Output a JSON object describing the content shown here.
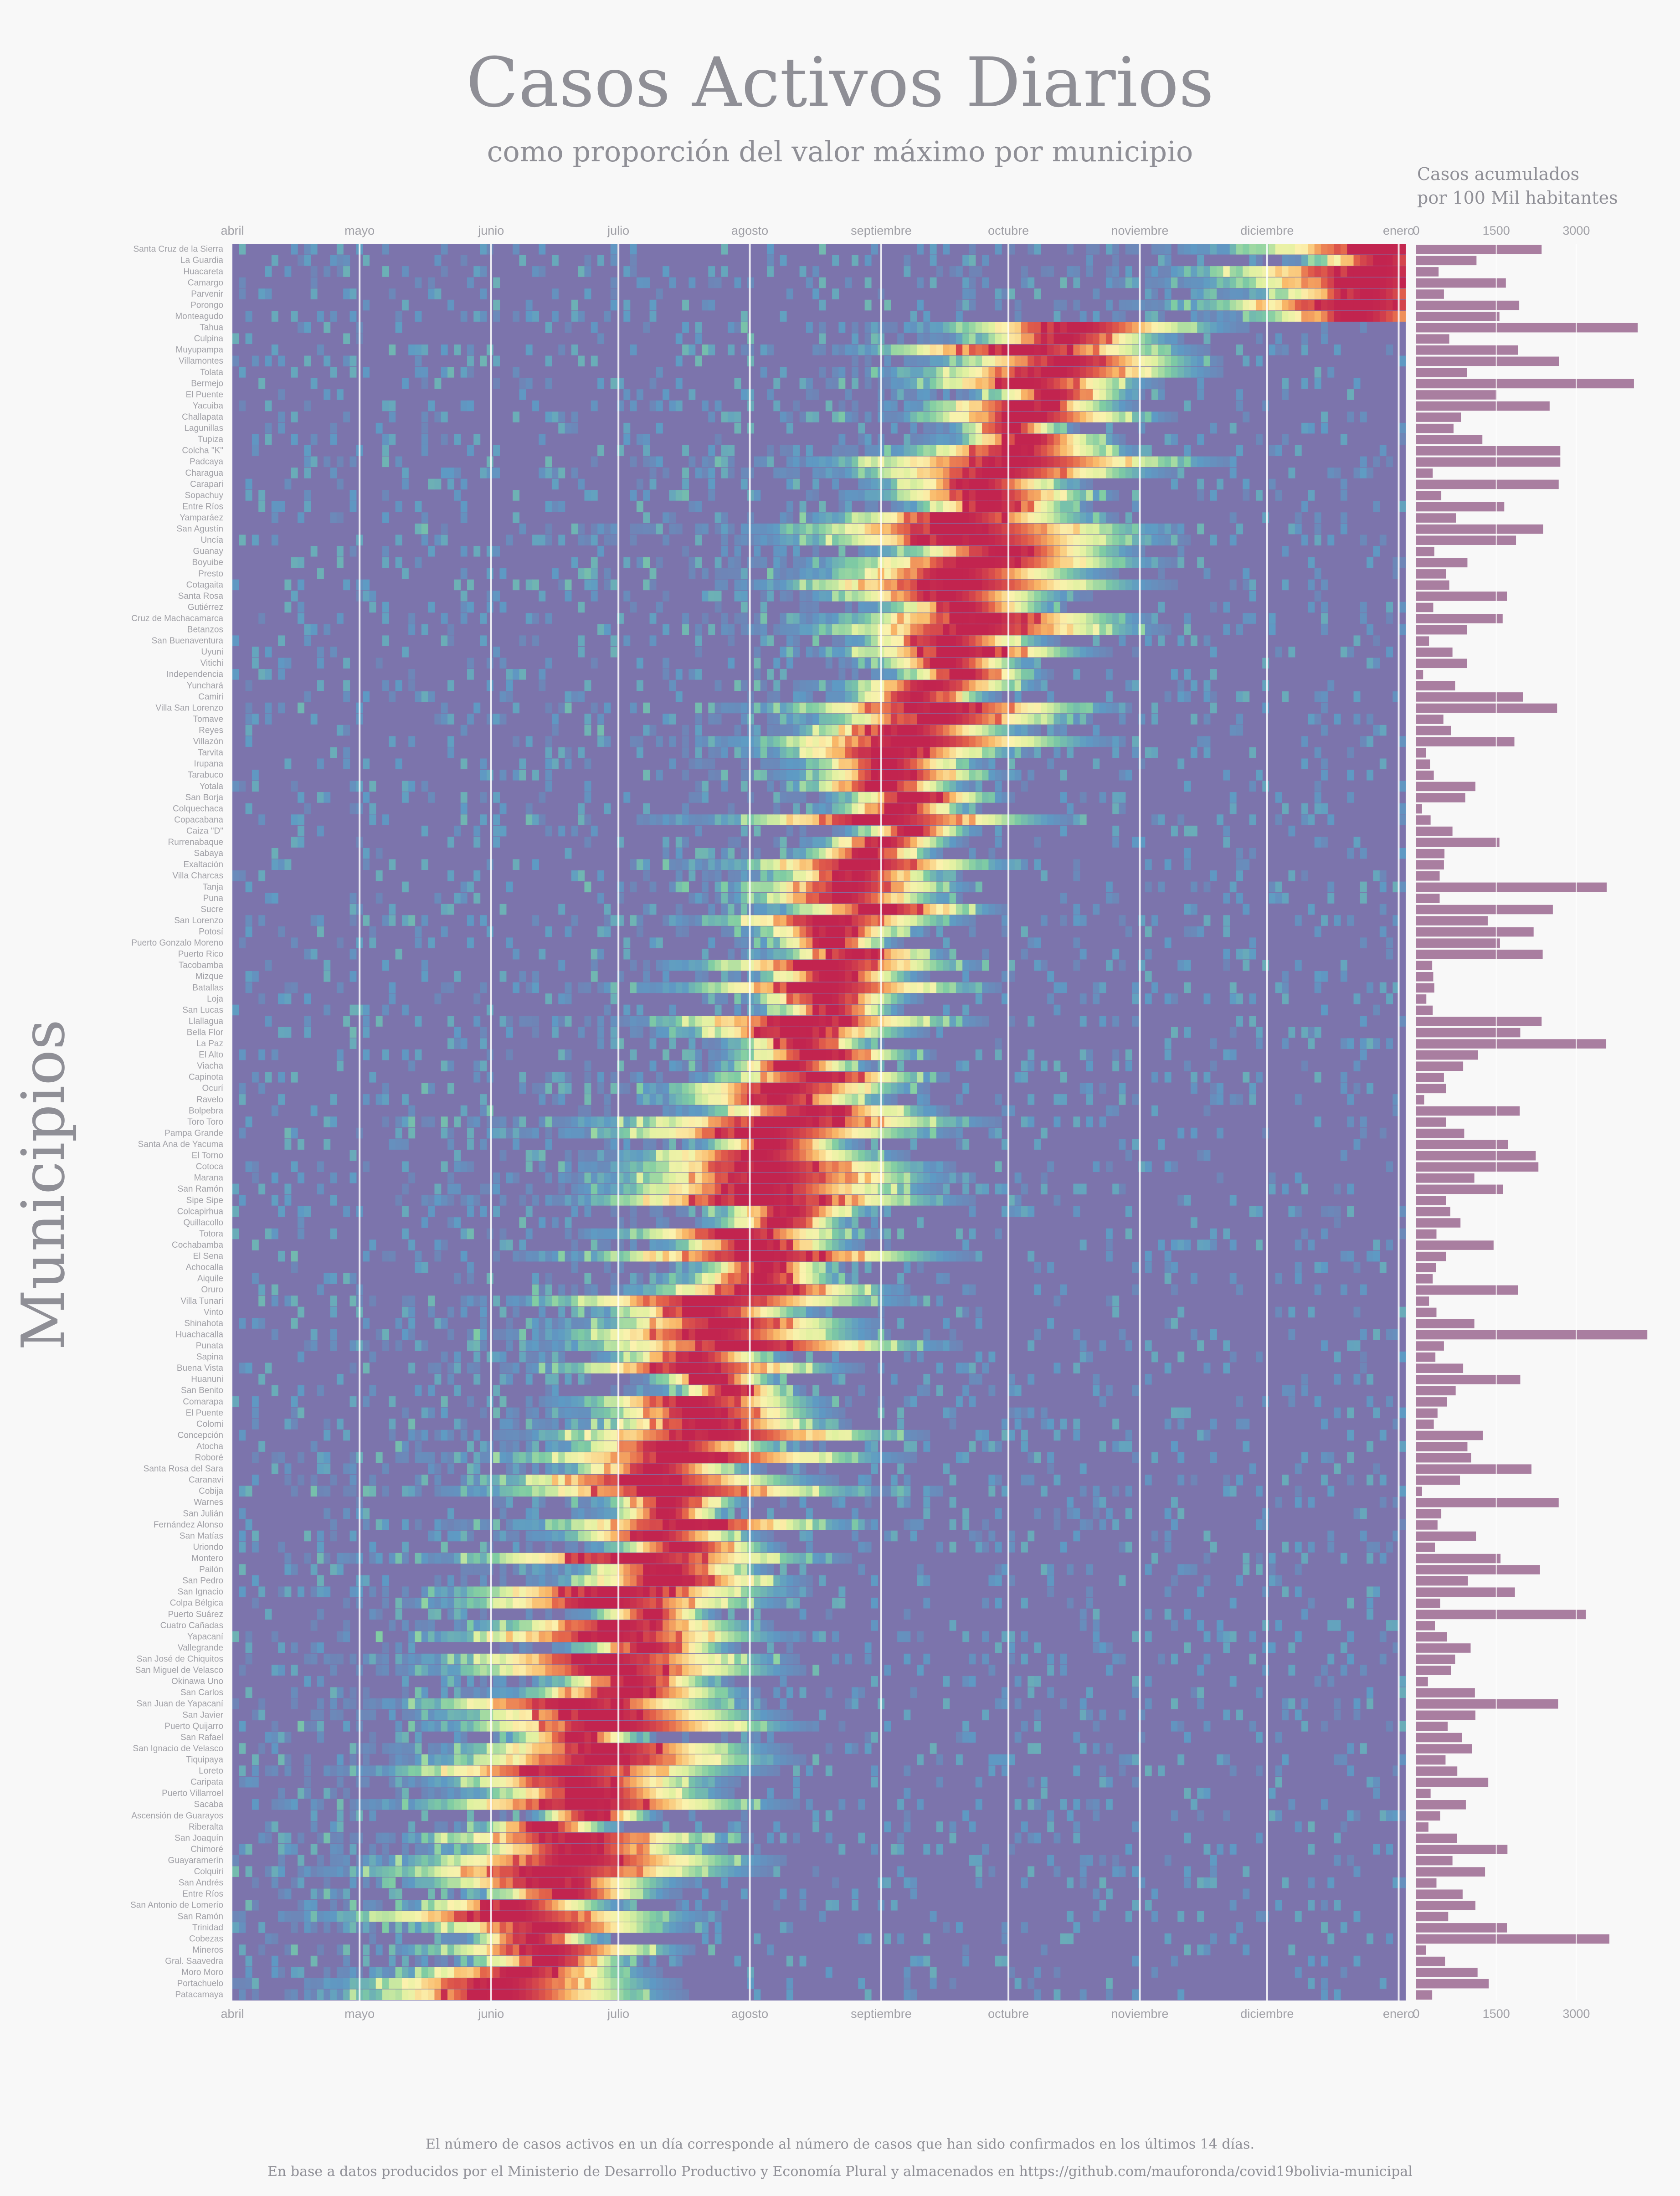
{
  "title": "Casos Activos Diarios",
  "subtitle": "como proporción del valor máximo por municipio",
  "y_axis_label": "Municipios",
  "bar_axis_title_line1": "Casos acumulados",
  "bar_axis_title_line2": "por 100 Mil habitantes",
  "footnote_line1": "El número de casos activos en un día corresponde al número de casos que han sido confirmados en los últimos 14 días.",
  "footnote_line2": "En base a datos producidos por el Ministerio de Desarrollo Productivo y Economía Plural y almacenados en https://github.com/mauforonda/covid19bolivia-municipal",
  "colors": {
    "background": "#f8f8f8",
    "heat_low": "#7c74ac",
    "heat_scale": [
      "#7c74ac",
      "#5e9ac4",
      "#7fcca3",
      "#dff1a0",
      "#fbf2ae",
      "#f9b868",
      "#e3624a",
      "#c2244f"
    ],
    "bar": "#a97ea0",
    "grid": "#ffffff",
    "text": "#8f8f96"
  },
  "chart_data": [
    {
      "type": "heatmap",
      "title": "Casos Activos Diarios",
      "subtitle": "como proporción del valor máximo por municipio",
      "ylabel": "Municipios",
      "value_range": [
        0,
        1
      ],
      "x_ticks": [
        "abril",
        "mayo",
        "junio",
        "julio",
        "agosto",
        "septiembre",
        "octubre",
        "noviembre",
        "diciembre",
        "enero"
      ],
      "x_range": [
        "2020-04-01",
        "2021-01-10"
      ],
      "municipios": [
        "Santa Cruz de la Sierra",
        "La Guardia",
        "Huacareta",
        "Camargo",
        "Parvenir",
        "Porongo",
        "Monteagudo",
        "Tahua",
        "Culpina",
        "Muyupampa",
        "Villamontes",
        "Tolata",
        "Bermejo",
        "El Puente",
        "Yacuiba",
        "Challapata",
        "Lagunillas",
        "Tupiza",
        "Colcha \"K\"",
        "Padcaya",
        "Charagua",
        "Carapari",
        "Sopachuy",
        "Entre Ríos",
        "Yamparáez",
        "San Agustín",
        "Uncía",
        "Guanay",
        "Boyuibe",
        "Presto",
        "Cotagaita",
        "Santa Rosa",
        "Gutiérrez",
        "Cruz de Machacamarca",
        "Betanzos",
        "San Buenaventura",
        "Uyuni",
        "Vitichi",
        "Independencia",
        "Yunchará",
        "Camiri",
        "Villa San Lorenzo",
        "Tomave",
        "Reyes",
        "Villazón",
        "Tarvita",
        "Irupana",
        "Tarabuco",
        "Yotala",
        "San Borja",
        "Colquechaca",
        "Copacabana",
        "Caiza \"D\"",
        "Rurrenabaque",
        "Sabaya",
        "Exaltación",
        "Villa Charcas",
        "Tanja",
        "Puna",
        "Sucre",
        "San Lorenzo",
        "Potosí",
        "Puerto Gonzalo Moreno",
        "Puerto Rico",
        "Tacobamba",
        "Mizque",
        "Batallas",
        "Loja",
        "San Lucas",
        "Llallagua",
        "Bella Flor",
        "La Paz",
        "El Alto",
        "Viacha",
        "Capinota",
        "Ocurí",
        "Ravelo",
        "Bolpebra",
        "Toro Toro",
        "Pampa Grande",
        "Santa Ana de Yacuma",
        "El Torno",
        "Cotoca",
        "Marana",
        "San Ramón",
        "Sipe Sipe",
        "Colcapirhua",
        "Quillacollo",
        "Totora",
        "Cochabamba",
        "El Sena",
        "Achocalla",
        "Aiquile",
        "Oruro",
        "Villa Tunari",
        "Vinto",
        "Shinahota",
        "Huachacalla",
        "Punata",
        "Sapina",
        "Buena Vista",
        "Huanuni",
        "San Benito",
        "Comarapa",
        "El Puente",
        "Colomi",
        "Concepción",
        "Atocha",
        "Roboré",
        "Santa Rosa del Sara",
        "Caranavi",
        "Cobija",
        "Warnes",
        "San Julián",
        "Fernández Alonso",
        "San Matías",
        "Uriondo",
        "Montero",
        "Pailón",
        "San Pedro",
        "San Ignacio",
        "Colpa Bélgica",
        "Puerto Suárez",
        "Cuatro Cañadas",
        "Yapacaní",
        "Vallegrande",
        "San José de Chiquitos",
        "San Miguel de Velasco",
        "Okinawa Uno",
        "San Carlos",
        "San Juan de Yapacaní",
        "San Javier",
        "Puerto Quijarro",
        "San Rafael",
        "San Ignacio de Velasco",
        "Tiquipaya",
        "Loreto",
        "Caripata",
        "Puerto Villarroel",
        "Sacaba",
        "Ascensión de Guarayos",
        "Riberalta",
        "San Joaquín",
        "Chimoré",
        "Guayaramerín",
        "Colquiri",
        "San Andrés",
        "Entre Ríos",
        "San Antonio de Lomerío",
        "San Ramón",
        "Trinidad",
        "Cobezas",
        "Mineros",
        "Gral. Saavedra",
        "Moro Moro",
        "Portachuelo",
        "Patacamaya"
      ]
    },
    {
      "type": "bar",
      "title": "Casos acumulados por 100 Mil habitantes",
      "x_ticks": [
        0,
        1500,
        3000
      ],
      "xlim": [
        0,
        4200
      ],
      "values": [
        2350,
        1130,
        420,
        1680,
        520,
        1930,
        1560,
        4150,
        620,
        1910,
        2680,
        950,
        4080,
        1510,
        2500,
        840,
        700,
        1240,
        2700,
        2700,
        310,
        2670,
        470,
        1650,
        750,
        2380,
        1870,
        340,
        960,
        560,
        620,
        1700,
        320,
        1620,
        950,
        240,
        680,
        950,
        130,
        730,
        2000,
        2640,
        510,
        650,
        1840,
        180,
        260,
        330,
        1110,
        920,
        110,
        270,
        680,
        1560,
        530,
        520,
        440,
        3570,
        440,
        2560,
        1340,
        2200,
        1570,
        2370,
        300,
        320,
        340,
        190,
        310,
        2350,
        1950,
        3560,
        1160,
        880,
        520,
        560,
        150,
        1940,
        560,
        900,
        1720,
        2240,
        2290,
        1090,
        1630,
        560,
        640,
        830,
        380,
        1450,
        560,
        370,
        310,
        1910,
        240,
        380,
        1090,
        4330,
        520,
        360,
        880,
        1950,
        740,
        580,
        400,
        330,
        1250,
        960,
        1030,
        2160,
        820,
        110,
        2670,
        470,
        400,
        1120,
        350,
        1580,
        2320,
        970,
        1850,
        450,
        3180,
        350,
        580,
        1020,
        730,
        650,
        220,
        1100,
        2660,
        1110,
        590,
        860,
        1050,
        550,
        770,
        1350,
        270,
        930,
        450,
        230,
        760,
        1710,
        680,
        1290,
        380,
        870,
        1110,
        600,
        1700,
        3620,
        180,
        540,
        1150,
        1360,
        300
      ]
    }
  ]
}
